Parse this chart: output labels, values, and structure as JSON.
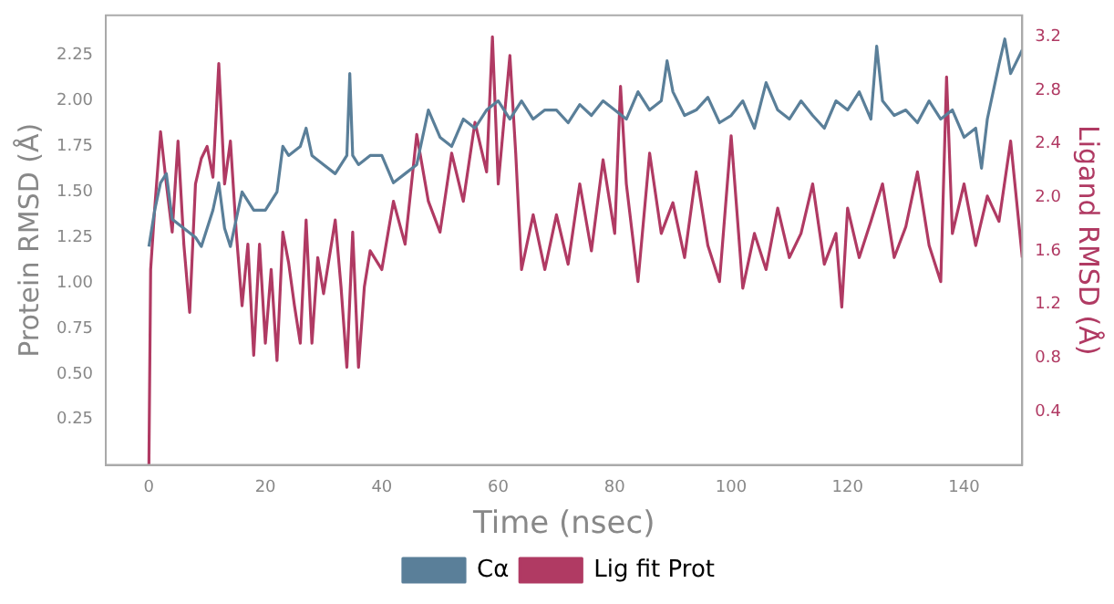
{
  "chart_data": {
    "type": "line",
    "xlabel": "Time (nsec)",
    "ylabel": "Protein RMSD (Å)",
    "y2label": "Ligand RMSD (Å)",
    "xlim": [
      -7.4,
      150
    ],
    "xticks": [
      0,
      20,
      40,
      60,
      80,
      100,
      120,
      140
    ],
    "ylim": [
      0,
      2.47
    ],
    "yticks": [
      {
        "value": 0.25,
        "label": "0.25"
      },
      {
        "value": 0.5,
        "label": "0.50"
      },
      {
        "value": 0.75,
        "label": "0.75"
      },
      {
        "value": 1,
        "label": "1.00"
      },
      {
        "value": 1.25,
        "label": "1.25"
      },
      {
        "value": 1.5,
        "label": "1.50"
      },
      {
        "value": 1.75,
        "label": "1.75"
      },
      {
        "value": 2,
        "label": "2.00"
      },
      {
        "value": 2.25,
        "label": "2.25"
      }
    ],
    "y2lim": [
      0,
      3.36
    ],
    "y2ticks": [
      0.4,
      0.8,
      1.2,
      1.6,
      {
        "value": 2,
        "label": "2.0"
      },
      2.4,
      2.8,
      3.2
    ],
    "legend": "bottom",
    "grid": false,
    "series": [
      {
        "name": "Cα",
        "color": "#5a7f99",
        "x": [
          0,
          1,
          2,
          3,
          4,
          6,
          8,
          9,
          10,
          11,
          12,
          13,
          14,
          15,
          16,
          18,
          20,
          22,
          23,
          24,
          26,
          27,
          28,
          30,
          32,
          34,
          34.5,
          35,
          36,
          38,
          40,
          42,
          44,
          46,
          48,
          50,
          52,
          54,
          56,
          58,
          60,
          62,
          64,
          66,
          68,
          70,
          72,
          74,
          76,
          78,
          80,
          82,
          84,
          86,
          88,
          89,
          90,
          92,
          94,
          96,
          98,
          100,
          102,
          104,
          106,
          108,
          110,
          112,
          114,
          116,
          118,
          120,
          122,
          124,
          125,
          126,
          128,
          130,
          132,
          134,
          136,
          138,
          140,
          142,
          143,
          144,
          146,
          147,
          148,
          150
        ],
        "values": [
          1.2,
          1.4,
          1.55,
          1.6,
          1.35,
          1.3,
          1.25,
          1.2,
          1.3,
          1.4,
          1.55,
          1.3,
          1.2,
          1.35,
          1.5,
          1.4,
          1.4,
          1.5,
          1.75,
          1.7,
          1.75,
          1.85,
          1.7,
          1.65,
          1.6,
          1.7,
          2.15,
          1.7,
          1.65,
          1.7,
          1.7,
          1.55,
          1.6,
          1.65,
          1.95,
          1.8,
          1.75,
          1.9,
          1.85,
          1.95,
          2.0,
          1.9,
          2.0,
          1.9,
          1.95,
          1.95,
          1.88,
          1.98,
          1.92,
          2.0,
          1.95,
          1.9,
          2.05,
          1.95,
          2.0,
          2.22,
          2.05,
          1.92,
          1.95,
          2.02,
          1.88,
          1.92,
          2.0,
          1.85,
          2.1,
          1.95,
          1.9,
          2.0,
          1.92,
          1.85,
          2.0,
          1.95,
          2.05,
          1.9,
          2.3,
          2.0,
          1.92,
          1.95,
          1.88,
          2.0,
          1.9,
          1.95,
          1.8,
          1.85,
          1.63,
          1.9,
          2.2,
          2.34,
          2.15,
          2.28
        ]
      },
      {
        "name": "Lig fit Prot",
        "color": "#b03a63",
        "axis": "y2",
        "x": [
          0,
          0.3,
          1,
          2,
          3,
          4,
          5,
          6,
          7,
          8,
          9,
          10,
          11,
          12,
          13,
          14,
          15,
          16,
          17,
          18,
          19,
          20,
          21,
          22,
          23,
          24,
          25,
          26,
          27,
          28,
          29,
          30,
          32,
          33,
          34,
          35,
          36,
          37,
          38,
          40,
          42,
          44,
          46,
          48,
          50,
          52,
          54,
          56,
          58,
          59,
          60,
          62,
          63,
          64,
          66,
          68,
          70,
          72,
          74,
          76,
          78,
          80,
          81,
          82,
          84,
          86,
          88,
          90,
          92,
          94,
          96,
          98,
          100,
          102,
          104,
          106,
          108,
          110,
          112,
          114,
          116,
          118,
          119,
          120,
          122,
          124,
          126,
          128,
          130,
          132,
          134,
          136,
          137,
          138,
          140,
          142,
          144,
          146,
          148,
          150
        ],
        "values": [
          0,
          1.46,
          1.92,
          2.49,
          2.1,
          1.74,
          2.42,
          1.65,
          1.14,
          2.1,
          2.29,
          2.38,
          2.15,
          3.0,
          2.1,
          2.42,
          1.74,
          1.19,
          1.65,
          0.82,
          1.65,
          0.91,
          1.46,
          0.78,
          1.74,
          1.51,
          1.19,
          0.91,
          1.83,
          0.91,
          1.55,
          1.28,
          1.83,
          1.33,
          0.73,
          1.74,
          0.73,
          1.33,
          1.6,
          1.46,
          1.97,
          1.65,
          2.47,
          1.97,
          1.74,
          2.33,
          1.97,
          2.56,
          2.19,
          3.2,
          2.1,
          3.06,
          2.33,
          1.46,
          1.87,
          1.46,
          1.87,
          1.5,
          2.1,
          1.6,
          2.28,
          1.73,
          2.83,
          2.1,
          1.37,
          2.33,
          1.73,
          1.96,
          1.55,
          2.19,
          1.64,
          1.37,
          2.46,
          1.32,
          1.73,
          1.46,
          1.92,
          1.55,
          1.73,
          2.1,
          1.5,
          1.73,
          1.18,
          1.92,
          1.55,
          1.82,
          2.1,
          1.55,
          1.78,
          2.19,
          1.64,
          1.37,
          2.9,
          1.73,
          2.1,
          1.64,
          2.01,
          1.82,
          2.42,
          1.55
        ]
      }
    ]
  }
}
